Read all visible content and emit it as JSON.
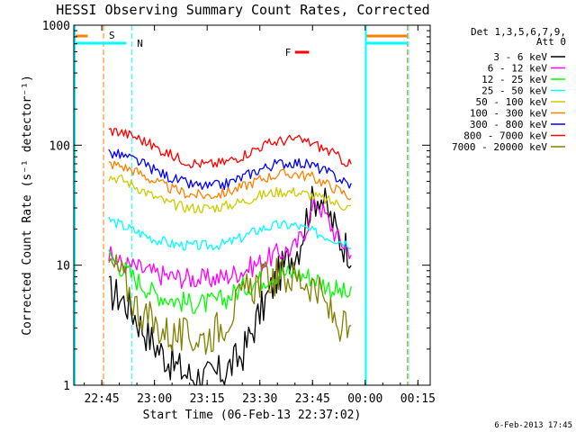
{
  "chart_data": {
    "type": "line",
    "title": "HESSI Observing Summary Count Rates, Corrected",
    "xlabel": "Start Time (06-Feb-13 22:37:02)",
    "ylabel": "Corrected Count Rate (s⁻¹ detector⁻¹)",
    "y_scale": "log",
    "ylim": [
      1,
      1000
    ],
    "xlim": [
      "22:37:02",
      "00:18:30"
    ],
    "x_ticks": [
      "22:45",
      "23:00",
      "23:15",
      "23:30",
      "23:45",
      "00:00",
      "00:15"
    ],
    "y_ticks": [
      "1",
      "10",
      "100",
      "1000"
    ],
    "legend_title": "Det 1,3,5,6,7,9,",
    "legend_subtitle": "Att 0",
    "legend_position": "right",
    "markers": [
      {
        "label": "S",
        "color": "#ff8000",
        "time": "22:45:30",
        "bar": [
          "22:37:02",
          "22:41:00"
        ]
      },
      {
        "label": "N",
        "color": "#00ffff",
        "time": "22:53:30",
        "bar": [
          "22:37:02",
          "22:52:00"
        ]
      },
      {
        "label": "F",
        "color": "#ff0000",
        "bar": [
          "23:40:00",
          "23:44:00"
        ]
      }
    ],
    "shaded_periods": [
      {
        "label": "S",
        "color": "#ff8000",
        "time": "00:12:00",
        "bar": [
          "00:00:00",
          "00:12:00"
        ]
      },
      {
        "label": "N",
        "color": "#00ffff",
        "time": "00:12:20",
        "bar": [
          "00:00:00",
          "00:12:00"
        ]
      }
    ],
    "night_boundary": {
      "color": "#00ffff",
      "time": "00:00:10"
    },
    "series": [
      {
        "name": "3 - 6 keV",
        "color": "#000000",
        "x": [
          "22:47",
          "22:50",
          "22:53",
          "22:56",
          "23:00",
          "23:05",
          "23:10",
          "23:15",
          "23:20",
          "23:25",
          "23:30",
          "23:35",
          "23:38",
          "23:41",
          "23:44",
          "23:47",
          "23:50",
          "23:53",
          "23:56"
        ],
        "y": [
          6,
          5.5,
          4.5,
          3.2,
          2.2,
          1.5,
          1.2,
          1.15,
          1.3,
          1.8,
          4,
          8,
          11,
          14,
          30,
          40,
          25,
          16,
          13
        ]
      },
      {
        "name": "6 - 12 keV",
        "color": "#ff00ff",
        "x": [
          "22:47",
          "22:50",
          "22:55",
          "23:00",
          "23:05",
          "23:10",
          "23:15",
          "23:20",
          "23:25",
          "23:30",
          "23:35",
          "23:40",
          "23:43",
          "23:46",
          "23:49",
          "23:52",
          "23:56"
        ],
        "y": [
          12,
          10.5,
          9.5,
          8.5,
          8,
          7.8,
          7.6,
          8,
          9,
          10.5,
          12.5,
          14,
          20,
          35,
          25,
          17,
          13
        ]
      },
      {
        "name": "12 - 25 keV",
        "color": "#00ff00",
        "x": [
          "22:47",
          "22:50",
          "22:55",
          "23:00",
          "23:05",
          "23:10",
          "23:15",
          "23:20",
          "23:25",
          "23:30",
          "23:35",
          "23:40",
          "23:45",
          "23:50",
          "23:56"
        ],
        "y": [
          12,
          10,
          7.5,
          5.8,
          5.2,
          4.8,
          4.8,
          5.2,
          6.5,
          7.5,
          8.5,
          8.5,
          8,
          6.5,
          5.5
        ]
      },
      {
        "name": "25 - 50 keV",
        "color": "#00ffff",
        "x": [
          "22:47",
          "22:50",
          "22:55",
          "23:00",
          "23:05",
          "23:10",
          "23:15",
          "23:20",
          "23:25",
          "23:30",
          "23:35",
          "23:40",
          "23:45",
          "23:50",
          "23:56"
        ],
        "y": [
          24,
          22,
          19,
          16.5,
          15,
          14.5,
          14.5,
          15,
          17,
          20,
          21.5,
          21.5,
          19,
          17,
          15
        ]
      },
      {
        "name": "50 - 100 keV",
        "color": "#cccc00",
        "x": [
          "22:47",
          "22:50",
          "22:55",
          "23:00",
          "23:05",
          "23:10",
          "23:15",
          "23:20",
          "23:25",
          "23:30",
          "23:35",
          "23:40",
          "23:45",
          "23:50",
          "23:56"
        ],
        "y": [
          55,
          53,
          45,
          37,
          32,
          30,
          30,
          31,
          34,
          38,
          41,
          41,
          38,
          34,
          30
        ]
      },
      {
        "name": "100 - 300 keV",
        "color": "#ff8000",
        "x": [
          "22:47",
          "22:50",
          "22:55",
          "23:00",
          "23:05",
          "23:10",
          "23:15",
          "23:20",
          "23:25",
          "23:30",
          "23:35",
          "23:40",
          "23:45",
          "23:50",
          "23:56"
        ],
        "y": [
          70,
          68,
          60,
          50,
          43,
          39,
          38,
          40,
          45,
          52,
          57,
          58,
          54,
          46,
          37
        ]
      },
      {
        "name": "300 - 800 keV",
        "color": "#0000ff",
        "x": [
          "22:47",
          "22:50",
          "22:55",
          "23:00",
          "23:05",
          "23:10",
          "23:15",
          "23:20",
          "23:25",
          "23:30",
          "23:35",
          "23:40",
          "23:45",
          "23:50",
          "23:56"
        ],
        "y": [
          86,
          83,
          74,
          62,
          53,
          47,
          45,
          47,
          54,
          63,
          70,
          72,
          68,
          58,
          46
        ]
      },
      {
        "name": "800 - 7000 keV",
        "color": "#ff0000",
        "x": [
          "22:47",
          "22:50",
          "22:55",
          "23:00",
          "23:05",
          "23:10",
          "23:15",
          "23:20",
          "23:25",
          "23:30",
          "23:35",
          "23:40",
          "23:45",
          "23:50",
          "23:56"
        ],
        "y": [
          133,
          130,
          116,
          97,
          82,
          72,
          69,
          72,
          82,
          97,
          108,
          112,
          104,
          88,
          68
        ]
      },
      {
        "name": "7000 - 20000 keV",
        "color": "#808000",
        "x": [
          "22:47",
          "22:50",
          "22:55",
          "23:00",
          "23:05",
          "23:10",
          "23:15",
          "23:20",
          "23:25",
          "23:30",
          "23:35",
          "23:40",
          "23:45",
          "23:50",
          "23:56"
        ],
        "y": [
          10,
          9,
          4.5,
          3.2,
          2.6,
          2.5,
          2.5,
          3.4,
          5.5,
          7.5,
          8,
          8,
          7,
          4,
          2.5
        ]
      }
    ]
  },
  "timestamp": "6-Feb-2013 17:45"
}
